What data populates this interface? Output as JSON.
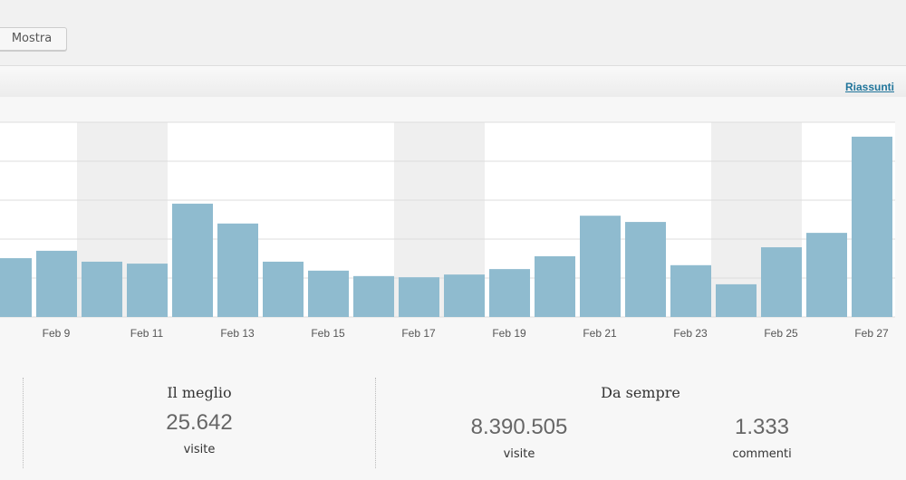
{
  "toolbar": {
    "show_label": "Mostra"
  },
  "header": {
    "summaries_link": "Riassunti"
  },
  "chart_data": {
    "type": "bar",
    "categories": [
      "Feb 8",
      "Feb 9",
      "Feb 10",
      "Feb 11",
      "Feb 12",
      "Feb 13",
      "Feb 14",
      "Feb 15",
      "Feb 16",
      "Feb 17",
      "Feb 18",
      "Feb 19",
      "Feb 20",
      "Feb 21",
      "Feb 22",
      "Feb 23",
      "Feb 24",
      "Feb 25",
      "Feb 26",
      "Feb 27"
    ],
    "tick_labels": [
      "Feb 9",
      "Feb 11",
      "Feb 13",
      "Feb 15",
      "Feb 17",
      "Feb 19",
      "Feb 21",
      "Feb 23",
      "Feb 25",
      "Feb 27"
    ],
    "values": [
      1.51,
      1.7,
      1.42,
      1.37,
      2.91,
      2.4,
      1.42,
      1.19,
      1.05,
      1.02,
      1.09,
      1.23,
      1.56,
      2.6,
      2.44,
      1.33,
      0.84,
      1.79,
      2.16,
      4.63
    ],
    "ylim": [
      0,
      5
    ],
    "grid": true,
    "weekend_shading": [
      "Feb 10",
      "Feb 11",
      "Feb 17",
      "Feb 18",
      "Feb 24",
      "Feb 25"
    ],
    "bar_color": "#8fbbcf",
    "shade_color": "#efefef"
  },
  "stats": {
    "best": {
      "title": "Il meglio",
      "value": "25.642",
      "unit": "visite"
    },
    "alltime": {
      "title": "Da sempre",
      "visits": "8.390.505",
      "visits_unit": "visite",
      "comments": "1.333",
      "comments_unit": "commenti"
    }
  }
}
